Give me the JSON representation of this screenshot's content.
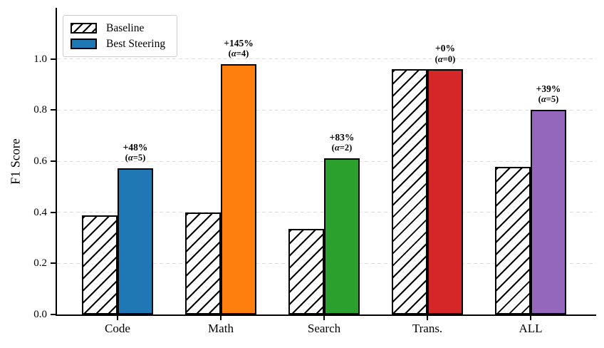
{
  "chart_data": {
    "type": "bar",
    "title": "",
    "xlabel": "",
    "ylabel": "F1 Score",
    "categories": [
      "Code",
      "Math",
      "Search",
      "Trans.",
      "ALL"
    ],
    "series": [
      {
        "name": "Baseline",
        "style": "white-hatched",
        "values": [
          0.388,
          0.4,
          0.334,
          0.96,
          0.578
        ]
      },
      {
        "name": "Best Steering",
        "style": "solid",
        "values": [
          0.573,
          0.98,
          0.612,
          0.96,
          0.802
        ],
        "colors": [
          "#1f77b4",
          "#ff7f0e",
          "#2ca02c",
          "#d62728",
          "#9467bd"
        ]
      }
    ],
    "annotations": [
      {
        "pct": "+48%",
        "alpha": "(α=5)"
      },
      {
        "pct": "+145%",
        "alpha": "(α=4)"
      },
      {
        "pct": "+83%",
        "alpha": "(α=2)"
      },
      {
        "pct": "+0%",
        "alpha": "(α=0)"
      },
      {
        "pct": "+39%",
        "alpha": "(α=5)"
      }
    ],
    "yticks": [
      0.0,
      0.2,
      0.4,
      0.6,
      0.8,
      1.0
    ],
    "ytick_labels": [
      "0.0",
      "0.2",
      "0.4",
      "0.6",
      "0.8",
      "1.0"
    ],
    "ylim": [
      0,
      1.2
    ],
    "grid": "horizontal-dashed",
    "legend_position": "upper-left"
  },
  "legend": {
    "items": [
      {
        "label": "Baseline"
      },
      {
        "label": "Best Steering"
      }
    ]
  },
  "colors": {
    "edge": "#000000",
    "grid": "#dcdcdc",
    "legend_border": "#cccccc",
    "background": "#ffffff"
  }
}
